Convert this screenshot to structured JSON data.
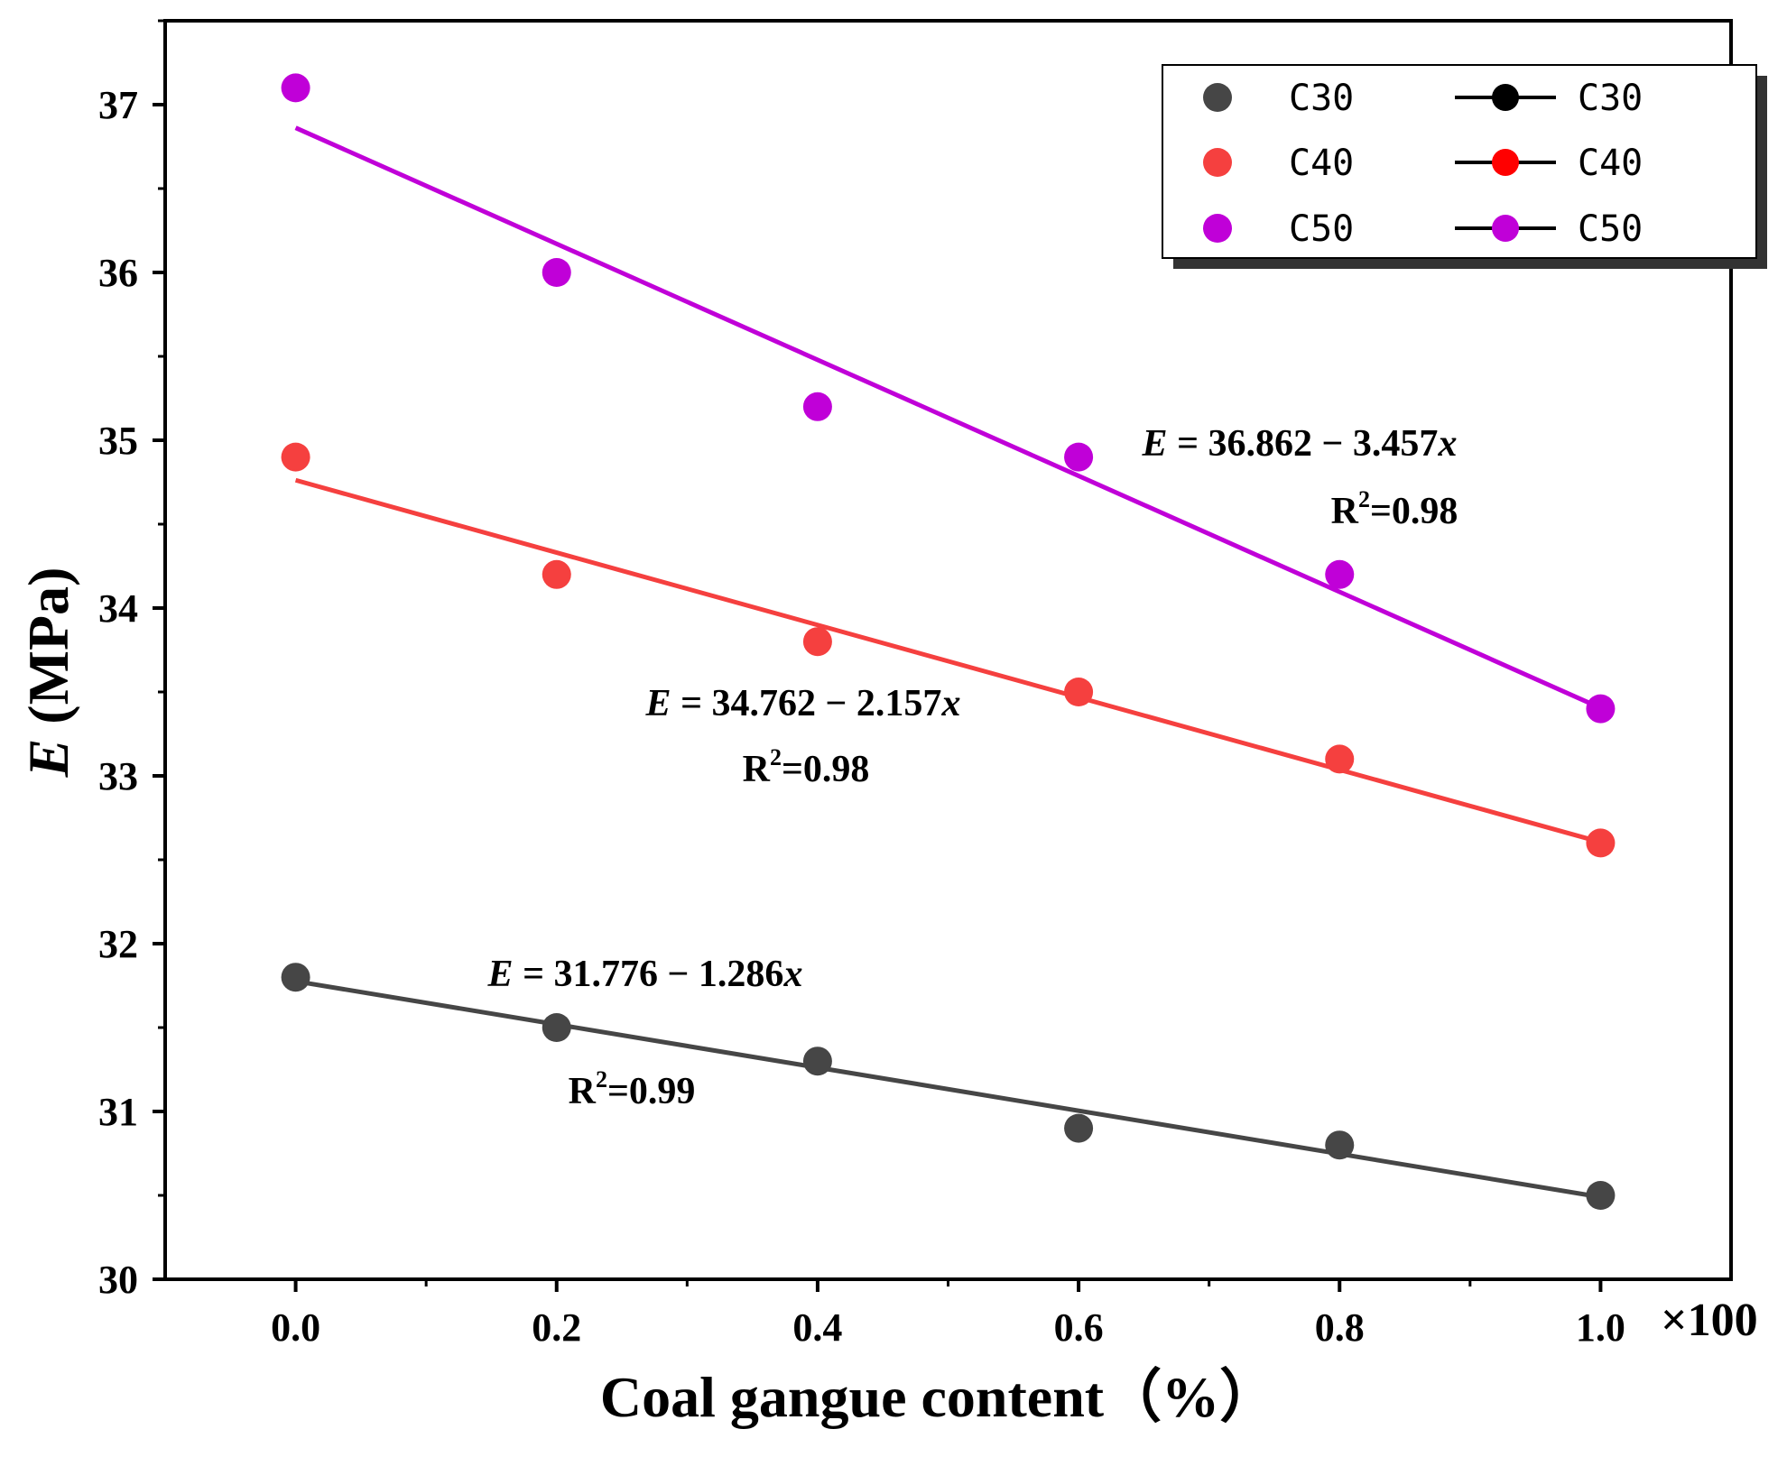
{
  "chart_data": {
    "type": "scatter",
    "title": "",
    "xlabel": "Coal gangue content（%）",
    "ylabel_var": "E",
    "ylabel_unit": " (MPa)",
    "x_multiplier": "×100",
    "xlim": [
      -0.1,
      1.1
    ],
    "ylim": [
      30,
      37.5
    ],
    "xticks": [
      "0.0",
      "0.2",
      "0.4",
      "0.6",
      "0.8",
      "1.0"
    ],
    "xtick_values": [
      0.0,
      0.2,
      0.4,
      0.6,
      0.8,
      1.0
    ],
    "yticks": [
      "30",
      "31",
      "32",
      "33",
      "34",
      "35",
      "36",
      "37"
    ],
    "ytick_values": [
      30,
      31,
      32,
      33,
      34,
      35,
      36,
      37
    ],
    "x": [
      0.0,
      0.2,
      0.4,
      0.6,
      0.8,
      1.0
    ],
    "series": [
      {
        "name": "C30",
        "color": "#464646",
        "values": [
          31.8,
          31.5,
          31.3,
          30.9,
          30.8,
          30.5
        ],
        "fit_intercept": 31.776,
        "fit_slope": -1.286
      },
      {
        "name": "C40",
        "color": "#f5403f",
        "values": [
          34.9,
          34.2,
          33.8,
          33.5,
          33.1,
          32.6
        ],
        "fit_intercept": 34.762,
        "fit_slope": -2.157
      },
      {
        "name": "C50",
        "color": "#c000d8",
        "values": [
          37.1,
          36.0,
          35.2,
          34.9,
          34.2,
          33.4
        ],
        "fit_intercept": 36.862,
        "fit_slope": -3.457
      }
    ],
    "fit_line_colors": [
      "#000000",
      "#ff0000",
      "#c000d8"
    ],
    "legend": {
      "scatter_labels": [
        "C30",
        "C40",
        "C50"
      ],
      "line_labels": [
        "C30",
        "C40",
        "C50"
      ],
      "placement": "top-right"
    },
    "annotations": [
      {
        "series": "C50",
        "eq_prefix": "E",
        "eq_rest": " = 36.862 − 3.457",
        "eq_var": "x",
        "r2_base": "R",
        "r2_sup": "2",
        "r2_rest": "=0.98"
      },
      {
        "series": "C40",
        "eq_prefix": "E",
        "eq_rest": " = 34.762 − 2.157",
        "eq_var": "x",
        "r2_base": "R",
        "r2_sup": "2",
        "r2_rest": "=0.98"
      },
      {
        "series": "C30",
        "eq_prefix": "E",
        "eq_rest": " = 31.776 − 1.286",
        "eq_var": "x",
        "r2_base": "R",
        "r2_sup": "2",
        "r2_rest": "=0.99"
      }
    ]
  }
}
